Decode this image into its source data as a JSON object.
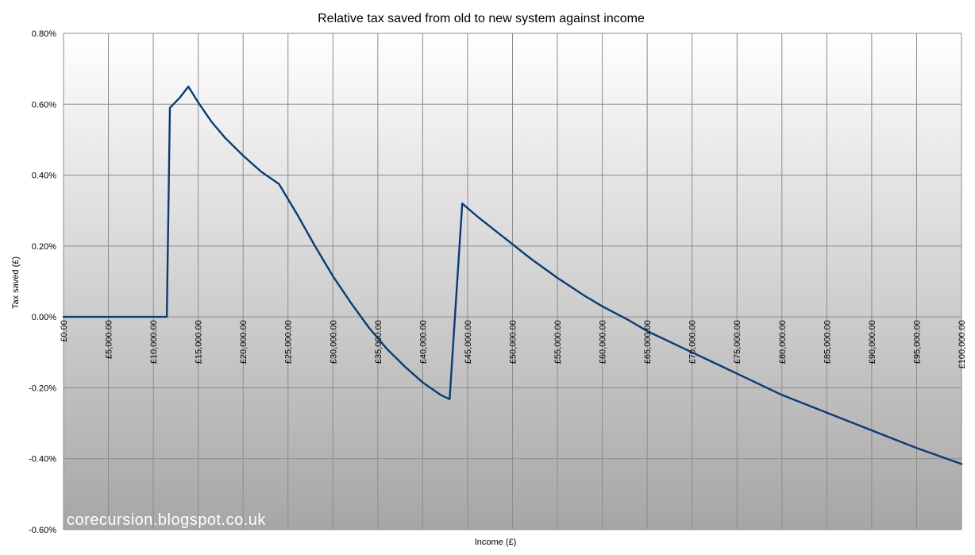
{
  "chart_data": {
    "type": "line",
    "title": "Relative tax saved from old to new system against income",
    "xlabel": "Income (£)",
    "ylabel": "Tax saved (£)",
    "xlim": [
      0,
      100000
    ],
    "ylim": [
      -0.6,
      0.8
    ],
    "x_ticks": [
      0,
      5000,
      10000,
      15000,
      20000,
      25000,
      30000,
      35000,
      40000,
      45000,
      50000,
      55000,
      60000,
      65000,
      70000,
      75000,
      80000,
      85000,
      90000,
      95000,
      100000
    ],
    "x_tick_labels": [
      "£0.00",
      "£5,000.00",
      "£10,000.00",
      "£15,000.00",
      "£20,000.00",
      "£25,000.00",
      "£30,000.00",
      "£35,000.00",
      "£40,000.00",
      "£45,000.00",
      "£50,000.00",
      "£55,000.00",
      "£60,000.00",
      "£65,000.00",
      "£70,000.00",
      "£75,000.00",
      "£80,000.00",
      "£85,000.00",
      "£90,000.00",
      "£95,000.00",
      "£100,000.00"
    ],
    "y_ticks": [
      0.8,
      0.6,
      0.4,
      0.2,
      0.0,
      -0.2,
      -0.4,
      -0.6
    ],
    "y_tick_labels": [
      "0.80%",
      "0.60%",
      "0.40%",
      "0.20%",
      "0.00%",
      "-0.20%",
      "-0.40%",
      "-0.60%"
    ],
    "grid": true,
    "series": [
      {
        "color": "#0b3b73",
        "x": [
          0,
          11500,
          11850,
          13000,
          13900,
          15000,
          16500,
          18000,
          20000,
          22000,
          24000,
          26000,
          28000,
          30000,
          32000,
          34000,
          36000,
          38000,
          40000,
          42000,
          43000,
          44400,
          46000,
          48000,
          50000,
          52000,
          55000,
          58000,
          60000,
          63000,
          65000,
          70000,
          75000,
          80000,
          85000,
          90000,
          95000,
          100000
        ],
        "y": [
          0.0,
          0.0,
          0.59,
          0.62,
          0.65,
          0.605,
          0.55,
          0.505,
          0.455,
          0.41,
          0.375,
          0.29,
          0.2,
          0.115,
          0.04,
          -0.03,
          -0.09,
          -0.14,
          -0.185,
          -0.22,
          -0.232,
          0.32,
          0.285,
          0.245,
          0.205,
          0.165,
          0.11,
          0.06,
          0.03,
          -0.01,
          -0.04,
          -0.1,
          -0.16,
          -0.22,
          -0.27,
          -0.32,
          -0.37,
          -0.415
        ]
      }
    ]
  },
  "watermark": "corecursion.blogspot.co.uk"
}
